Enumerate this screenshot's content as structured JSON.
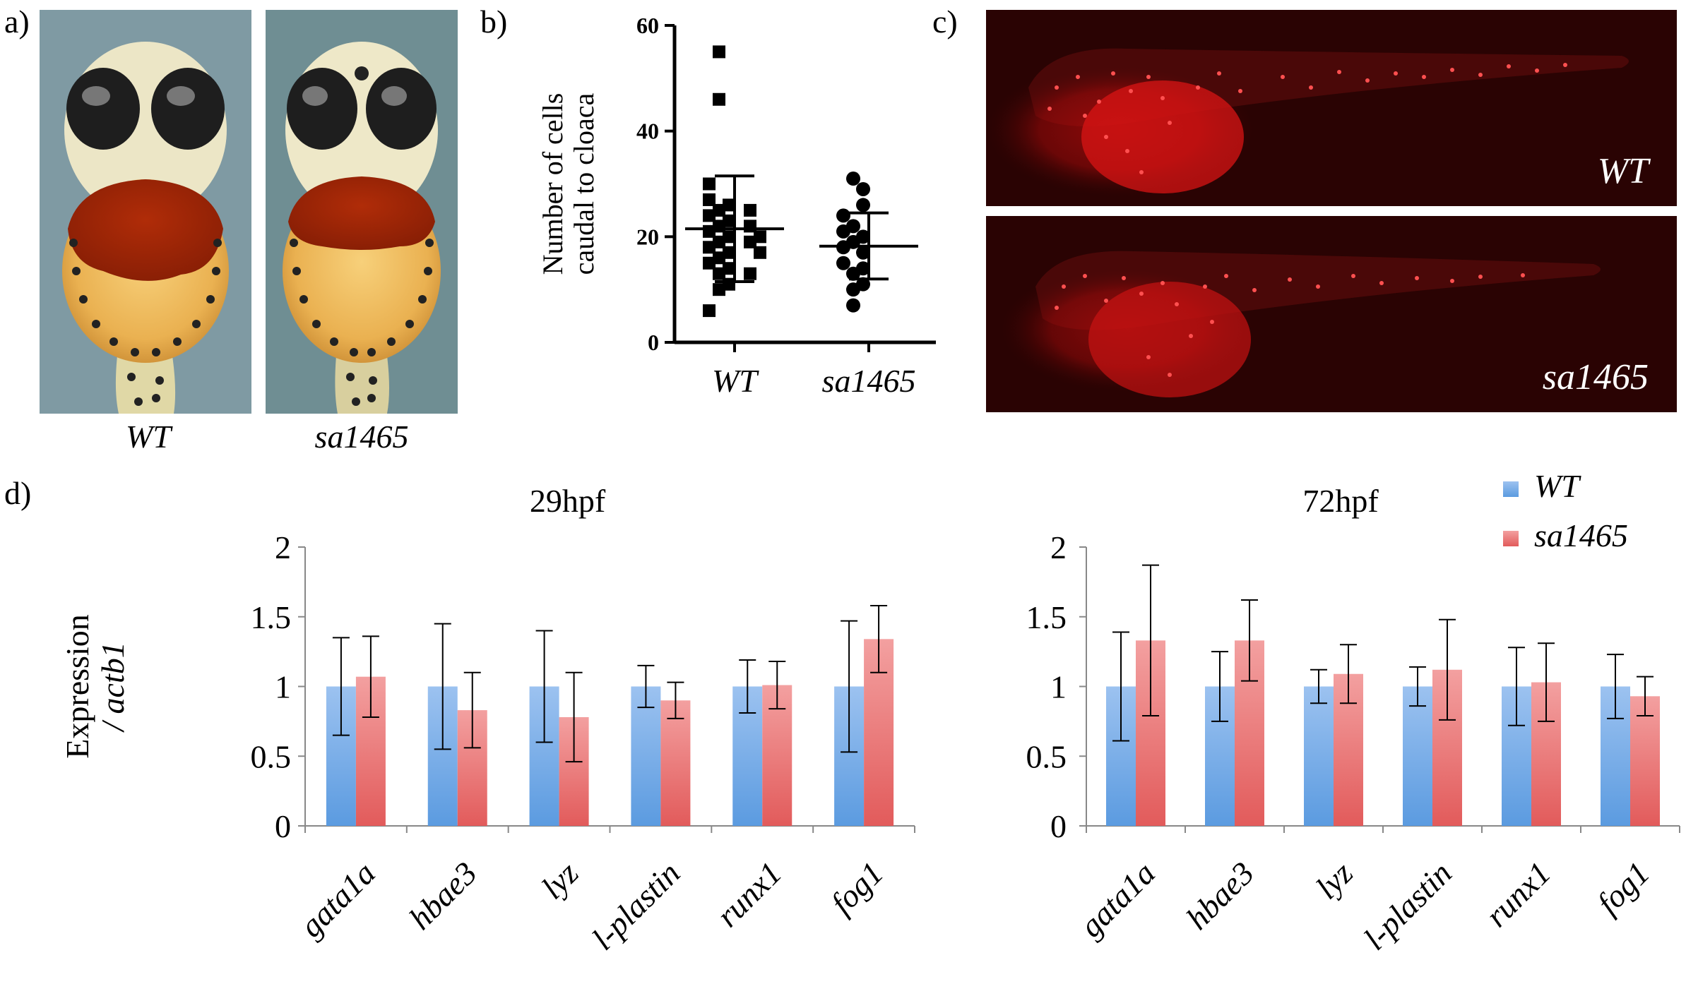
{
  "panels": {
    "a": {
      "label": "a)",
      "captions": [
        "WT",
        "sa1465"
      ]
    },
    "b": {
      "label": "b)"
    },
    "c": {
      "label": "c)",
      "image_labels": [
        "WT",
        "sa1465"
      ]
    },
    "d": {
      "label": "d)"
    }
  },
  "colors": {
    "wt": "#5b9be0",
    "sa1465": "#e25b5b",
    "fluor_bg": "#2a0303"
  },
  "chart_data": [
    {
      "type": "scatter",
      "panel": "b",
      "ylabel": [
        "Number of cells",
        "caudal to cloaca"
      ],
      "categories": [
        "WT",
        "sa1465"
      ],
      "ylim": [
        0,
        60
      ],
      "yticks": [
        0,
        20,
        40,
        60
      ],
      "series": [
        {
          "name": "WT",
          "marker": "square",
          "values": [
            55,
            46,
            30,
            27,
            26,
            25,
            25,
            24,
            23,
            22,
            22,
            21,
            20,
            20,
            19,
            19,
            18,
            17,
            17,
            16,
            15,
            14,
            13,
            13,
            11,
            10,
            6
          ],
          "mean": 21.5,
          "sd_upper": 31.5,
          "sd_lower": 11.5
        },
        {
          "name": "sa1465",
          "marker": "circle",
          "values": [
            31,
            29,
            26,
            24,
            22,
            21,
            20,
            19,
            18,
            17,
            15,
            14,
            13,
            11,
            10,
            7
          ],
          "mean": 18.2,
          "sd_upper": 24.5,
          "sd_lower": 12
        }
      ]
    },
    {
      "type": "bar",
      "panel": "d-left",
      "title": "29hpf",
      "ylabel": [
        "Expression",
        "/ actb1"
      ],
      "categories": [
        "gata1a",
        "hbae3",
        "lyz",
        "l-plastin",
        "runx1",
        "fog1"
      ],
      "ylim": [
        0,
        2
      ],
      "yticks": [
        "0",
        "0.5",
        "1",
        "1.5",
        "2"
      ],
      "series": [
        {
          "name": "WT",
          "values": [
            1,
            1,
            1,
            1,
            1,
            1
          ],
          "err_upper": [
            1.35,
            1.45,
            1.4,
            1.15,
            1.19,
            1.47
          ],
          "err_lower": [
            0.65,
            0.55,
            0.6,
            0.85,
            0.81,
            0.53
          ]
        },
        {
          "name": "sa1465",
          "values": [
            1.07,
            0.83,
            0.78,
            0.9,
            1.01,
            1.34
          ],
          "err_upper": [
            1.36,
            1.1,
            1.1,
            1.03,
            1.18,
            1.58
          ],
          "err_lower": [
            0.78,
            0.56,
            0.46,
            0.77,
            0.84,
            1.1
          ]
        }
      ]
    },
    {
      "type": "bar",
      "panel": "d-right",
      "title": "72hpf",
      "categories": [
        "gata1a",
        "hbae3",
        "lyz",
        "l-plastin",
        "runx1",
        "fog1"
      ],
      "ylim": [
        0,
        2
      ],
      "yticks": [
        "0",
        "0.5",
        "1",
        "1.5",
        "2"
      ],
      "legend": [
        "WT",
        "sa1465"
      ],
      "legend_position": "top-right",
      "series": [
        {
          "name": "WT",
          "values": [
            1,
            1,
            1,
            1,
            1,
            1
          ],
          "err_upper": [
            1.39,
            1.25,
            1.12,
            1.14,
            1.28,
            1.23
          ],
          "err_lower": [
            0.61,
            0.75,
            0.88,
            0.86,
            0.72,
            0.77
          ]
        },
        {
          "name": "sa1465",
          "values": [
            1.33,
            1.33,
            1.09,
            1.12,
            1.03,
            0.93
          ],
          "err_upper": [
            1.87,
            1.62,
            1.3,
            1.48,
            1.31,
            1.07
          ],
          "err_lower": [
            0.79,
            1.04,
            0.88,
            0.76,
            0.75,
            0.79
          ]
        }
      ]
    }
  ]
}
